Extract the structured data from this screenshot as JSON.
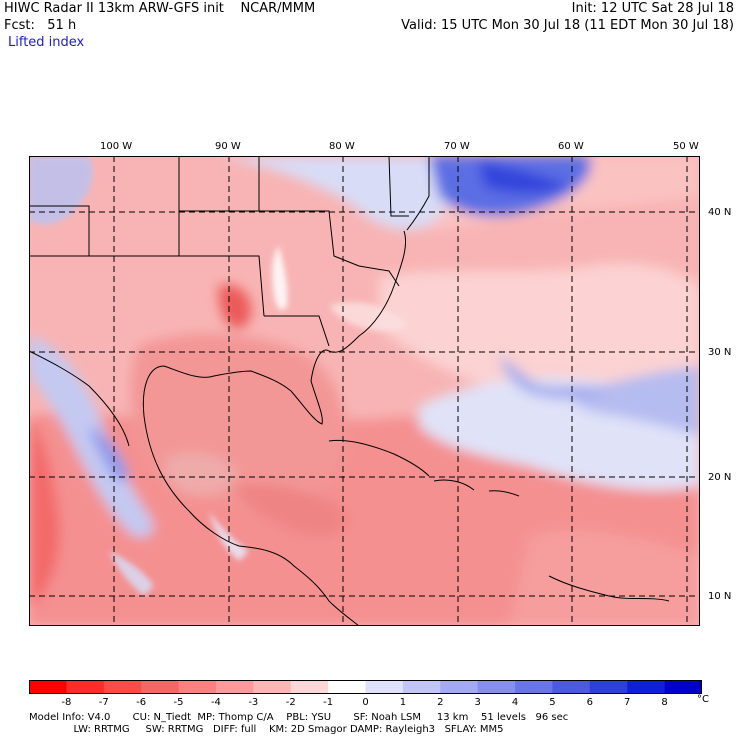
{
  "header": {
    "title": "HIWC Radar II 13km ARW-GFS init    NCAR/MMM",
    "init": "Init: 12 UTC Sat 28 Jul 18",
    "fcst": "Fcst:   51 h",
    "valid": "Valid: 15 UTC Mon 30 Jul 18 (11 EDT Mon 30 Jul 18)",
    "field": "Lifted index"
  },
  "map": {
    "lon_labels": [
      "100 W",
      "90 W",
      "80 W",
      "70 W",
      "60 W",
      "50 W"
    ],
    "lat_labels": [
      "40 N",
      "30 N",
      "20 N",
      "10 N"
    ]
  },
  "colorbar": {
    "unit": "°C",
    "ticks": [
      "-8",
      "-7",
      "-6",
      "-5",
      "-4",
      "-3",
      "-2",
      "-1",
      "0",
      "1",
      "2",
      "3",
      "4",
      "5",
      "6",
      "7",
      "8"
    ],
    "colors": [
      "#ff0000",
      "#ff2a2a",
      "#ff4a4a",
      "#f86565",
      "#f98181",
      "#fa9a9a",
      "#fbb6b6",
      "#fdd6d6",
      "#ffffff",
      "#dfe2fa",
      "#c1c6f4",
      "#a3aaef",
      "#8690ea",
      "#6a76e6",
      "#4c5ae2",
      "#2f3fdd",
      "#1020d8",
      "#0000cc"
    ]
  },
  "footer": {
    "line1": "Model Info: V4.0       CU: N_Tiedt  MP: Thomp C/A    PBL: YSU       SF: Noah LSM     13 km    51 levels   96 sec",
    "line2": "              LW: RRTMG     SW: RRTMG   DIFF: full    KM: 2D Smagor DAMP: Rayleigh3   SFLAY: MM5"
  }
}
